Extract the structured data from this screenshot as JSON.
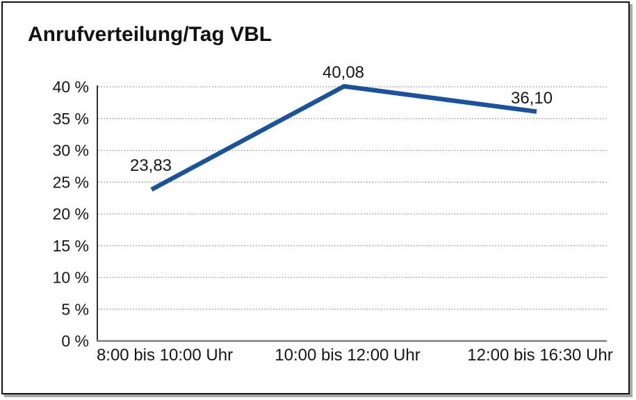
{
  "title": "Anrufverteilung/Tag VBL",
  "chart_data": {
    "type": "line",
    "title": "Anrufverteilung/Tag VBL",
    "categories": [
      "8:00 bis 10:00 Uhr",
      "10:00 bis 12:00 Uhr",
      "12:00 bis 16:30 Uhr"
    ],
    "values": [
      23.83,
      40.08,
      36.1
    ],
    "value_labels": [
      "23,83",
      "40,08",
      "36,10"
    ],
    "xlabel": "",
    "ylabel": "",
    "ylim": [
      0,
      40
    ],
    "ytick_step": 5,
    "ytick_labels": [
      "0 %",
      "5 %",
      "10 %",
      "15 %",
      "20 %",
      "25 %",
      "30 %",
      "35 %",
      "40 %"
    ],
    "grid": "horizontal-dotted",
    "legend_position": "none",
    "series_name": "Anrufverteilung/Tag VBL"
  },
  "colors": {
    "line": "#1a539c",
    "gridline": "#8c8c8c",
    "y_axis": "#333333",
    "x_axis": "#7d7d7d",
    "border": "#131313",
    "text": "#161616"
  }
}
